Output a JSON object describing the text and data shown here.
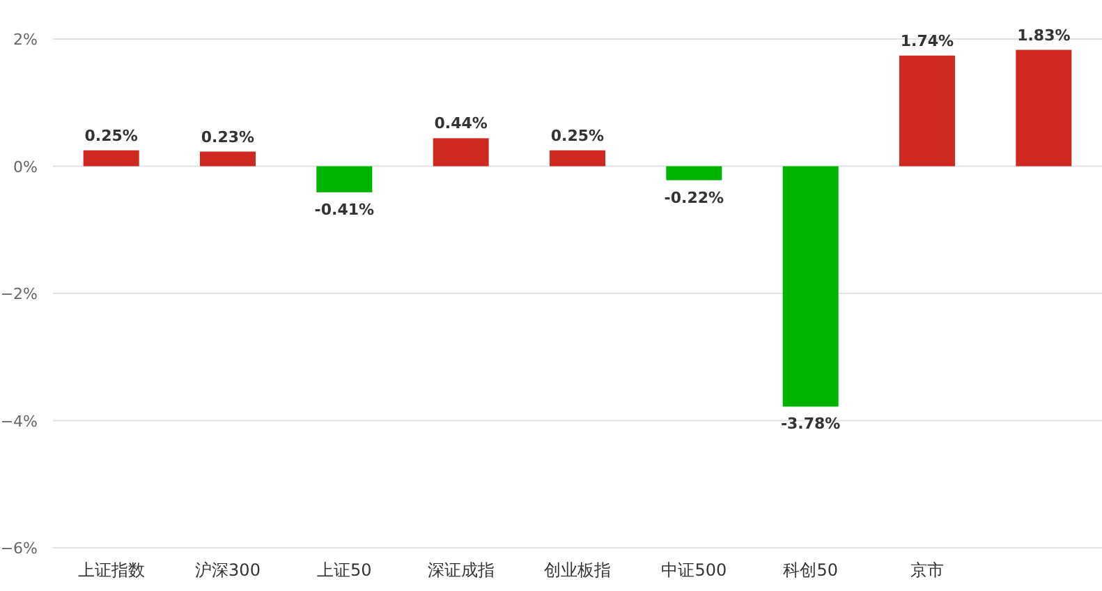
{
  "chart_data": {
    "type": "bar",
    "categories": [
      "上证指数",
      "沪深300",
      "上证50",
      "深证成指",
      "创业板指",
      "中证500",
      "科创50",
      "京市",
      null
    ],
    "values": [
      0.25,
      0.23,
      -0.41,
      0.44,
      0.25,
      -0.22,
      -3.78,
      1.74,
      1.83
    ],
    "colors": [
      "#cf2a22",
      "#cf2a22",
      "#00b300",
      "#cf2a22",
      "#cf2a22",
      "#00b300",
      "#00b300",
      "#cf2a22",
      "#cf2a22"
    ],
    "value_labels": [
      "0.25%",
      "0.23%",
      "-0.41%",
      "0.44%",
      "0.25%",
      "-0.22%",
      "-3.78%",
      "1.74%",
      "1.83%"
    ],
    "ylim": [
      -6,
      2
    ],
    "yticks": [
      {
        "value": 2,
        "label": "2%"
      },
      {
        "value": 0,
        "label": "0%"
      },
      {
        "value": -2,
        "label": "−2%"
      },
      {
        "value": -4,
        "label": "−4%"
      },
      {
        "value": -6,
        "label": "−6%"
      }
    ],
    "grid": "y"
  }
}
